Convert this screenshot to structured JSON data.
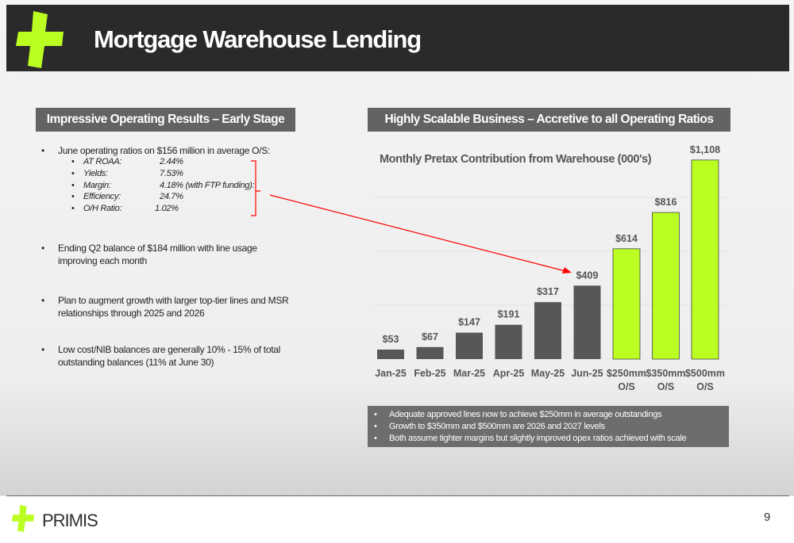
{
  "header": {
    "title": "Mortgage Warehouse Lending"
  },
  "left": {
    "section_title": "Impressive Operating Results – Early Stage",
    "bullet1": "June operating ratios on $156 million in average O/S:",
    "ratios": [
      {
        "label": "AT ROAA:",
        "value": "2.44%"
      },
      {
        "label": "Yields:",
        "value": "7.53%"
      },
      {
        "label": "Margin:",
        "value": "4.18% (with FTP funding):"
      },
      {
        "label": "Efficiency:",
        "value": "24.7%"
      },
      {
        "label": "O/H Ratio:",
        "value": "1.02%"
      }
    ],
    "bullet2": "Ending Q2 balance of $184 million with line usage improving each month",
    "bullet3": "Plan to augment growth with larger top-tier lines and MSR relationships through 2025 and 2026",
    "bullet4": "Low cost/NIB balances are generally 10% - 15% of total outstanding balances (11% at June 30)"
  },
  "right": {
    "section_title": "Highly Scalable Business – Accretive to all Operating Ratios"
  },
  "chart_data": {
    "type": "bar",
    "title": "Monthly Pretax Contribution from Warehouse (000's)",
    "categories": [
      "Jan-25",
      "Feb-25",
      "Mar-25",
      "Apr-25",
      "May-25",
      "Jun-25",
      "$250mm O/S",
      "$350mm O/S",
      "$500mm O/S"
    ],
    "values": [
      53,
      67,
      147,
      191,
      317,
      409,
      614,
      816,
      1108
    ],
    "data_labels": [
      "$53",
      "$67",
      "$147",
      "$191",
      "$317",
      "$409",
      "$614",
      "$816",
      "$1,108"
    ],
    "bar_kinds": [
      "actual",
      "actual",
      "actual",
      "actual",
      "actual",
      "actual",
      "projected",
      "projected",
      "projected"
    ],
    "colors": {
      "actual": "#575757",
      "projected": "#bbff22"
    },
    "ylim": [
      0,
      1200
    ],
    "grid": true
  },
  "notes": [
    "Adequate approved lines now to achieve $250mm in average outstandings",
    "Growth to $350mm and $500mm are 2026 and 2027 levels",
    "Both assume tighter margins but slightly improved opex ratios achieved with scale"
  ],
  "colors": {
    "accent": "#bbff22",
    "header_bg": "#2a2a2a",
    "bar_bg": "#636363",
    "arrow": "#ff0000"
  },
  "icons": {
    "logo": "primis-plus-logo-icon"
  },
  "footer": {
    "brand": "PRIMIS",
    "page_number": "9"
  }
}
